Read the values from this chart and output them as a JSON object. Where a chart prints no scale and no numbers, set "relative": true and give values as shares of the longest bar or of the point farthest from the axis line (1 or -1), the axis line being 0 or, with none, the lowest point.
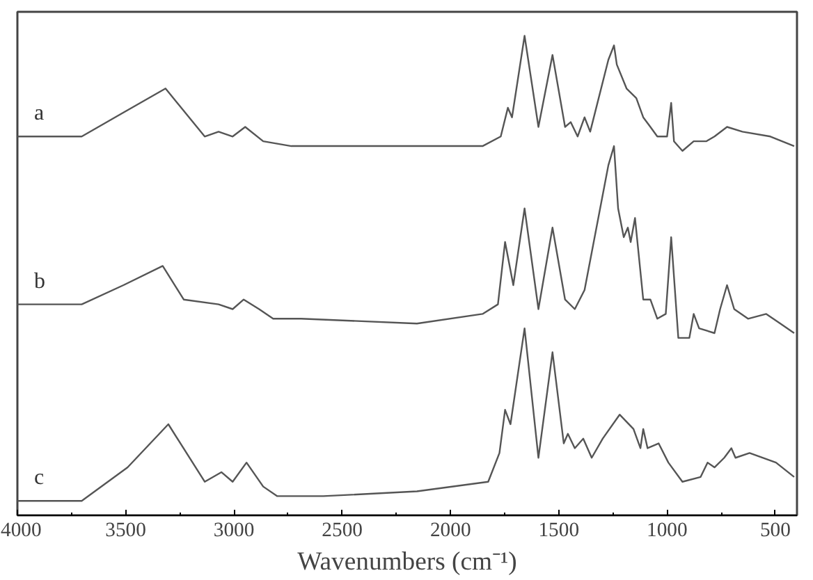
{
  "chart_data": {
    "type": "line",
    "relative": true,
    "xlabel": "Wavenumbers (cm⁻¹)",
    "xlim": [
      4000,
      400
    ],
    "xticks": [
      4000,
      3500,
      3000,
      2500,
      2000,
      1500,
      1000,
      500
    ],
    "tick_labels": "x",
    "grid": false,
    "legend": false,
    "marker": "none",
    "line_style": "solid",
    "series": [
      {
        "name": "a",
        "color": "#555555",
        "x": [
          4000,
          3703,
          3510,
          3316,
          3135,
          3071,
          3006,
          2948,
          2865,
          2735,
          2155,
          1852,
          1768,
          1735,
          1716,
          1658,
          1594,
          1529,
          1471,
          1445,
          1413,
          1381,
          1355,
          1271,
          1245,
          1232,
          1187,
          1142,
          1110,
          1077,
          1045,
          1000,
          981,
          968,
          929,
          877,
          819,
          781,
          723,
          652,
          523,
          413
        ],
        "values": [
          0.79,
          0.79,
          0.84,
          0.89,
          0.79,
          0.8,
          0.79,
          0.81,
          0.78,
          0.77,
          0.77,
          0.77,
          0.79,
          0.85,
          0.83,
          1.0,
          0.81,
          0.96,
          0.81,
          0.82,
          0.79,
          0.83,
          0.8,
          0.95,
          0.98,
          0.94,
          0.89,
          0.87,
          0.83,
          0.81,
          0.79,
          0.79,
          0.86,
          0.78,
          0.76,
          0.78,
          0.78,
          0.79,
          0.81,
          0.8,
          0.79,
          0.77
        ]
      },
      {
        "name": "b",
        "color": "#555555",
        "x": [
          4000,
          3703,
          3510,
          3329,
          3232,
          3071,
          3006,
          2955,
          2884,
          2819,
          2690,
          2155,
          1852,
          1781,
          1748,
          1710,
          1658,
          1594,
          1529,
          1471,
          1426,
          1381,
          1271,
          1245,
          1226,
          1200,
          1181,
          1168,
          1148,
          1110,
          1077,
          1045,
          1006,
          981,
          948,
          897,
          877,
          852,
          781,
          755,
          723,
          690,
          626,
          542,
          477,
          413
        ],
        "values": [
          0.44,
          0.44,
          0.48,
          0.52,
          0.45,
          0.44,
          0.43,
          0.45,
          0.43,
          0.41,
          0.41,
          0.4,
          0.42,
          0.44,
          0.57,
          0.48,
          0.64,
          0.43,
          0.6,
          0.45,
          0.43,
          0.47,
          0.73,
          0.77,
          0.64,
          0.58,
          0.6,
          0.57,
          0.62,
          0.45,
          0.45,
          0.41,
          0.42,
          0.58,
          0.37,
          0.37,
          0.42,
          0.39,
          0.38,
          0.43,
          0.48,
          0.43,
          0.41,
          0.42,
          0.4,
          0.38
        ]
      },
      {
        "name": "c",
        "color": "#555555",
        "x": [
          4000,
          3703,
          3491,
          3303,
          3135,
          3058,
          3006,
          2942,
          2865,
          2800,
          2587,
          2155,
          1826,
          1774,
          1748,
          1723,
          1658,
          1594,
          1529,
          1477,
          1458,
          1426,
          1387,
          1348,
          1297,
          1219,
          1155,
          1123,
          1110,
          1090,
          1039,
          994,
          929,
          845,
          813,
          781,
          736,
          703,
          684,
          619,
          497,
          413
        ],
        "values": [
          0.03,
          0.03,
          0.1,
          0.19,
          0.07,
          0.09,
          0.07,
          0.11,
          0.06,
          0.04,
          0.04,
          0.05,
          0.07,
          0.13,
          0.22,
          0.19,
          0.39,
          0.12,
          0.34,
          0.15,
          0.17,
          0.14,
          0.16,
          0.12,
          0.16,
          0.21,
          0.18,
          0.14,
          0.18,
          0.14,
          0.15,
          0.11,
          0.07,
          0.08,
          0.11,
          0.1,
          0.12,
          0.14,
          0.12,
          0.13,
          0.11,
          0.08
        ]
      }
    ]
  }
}
